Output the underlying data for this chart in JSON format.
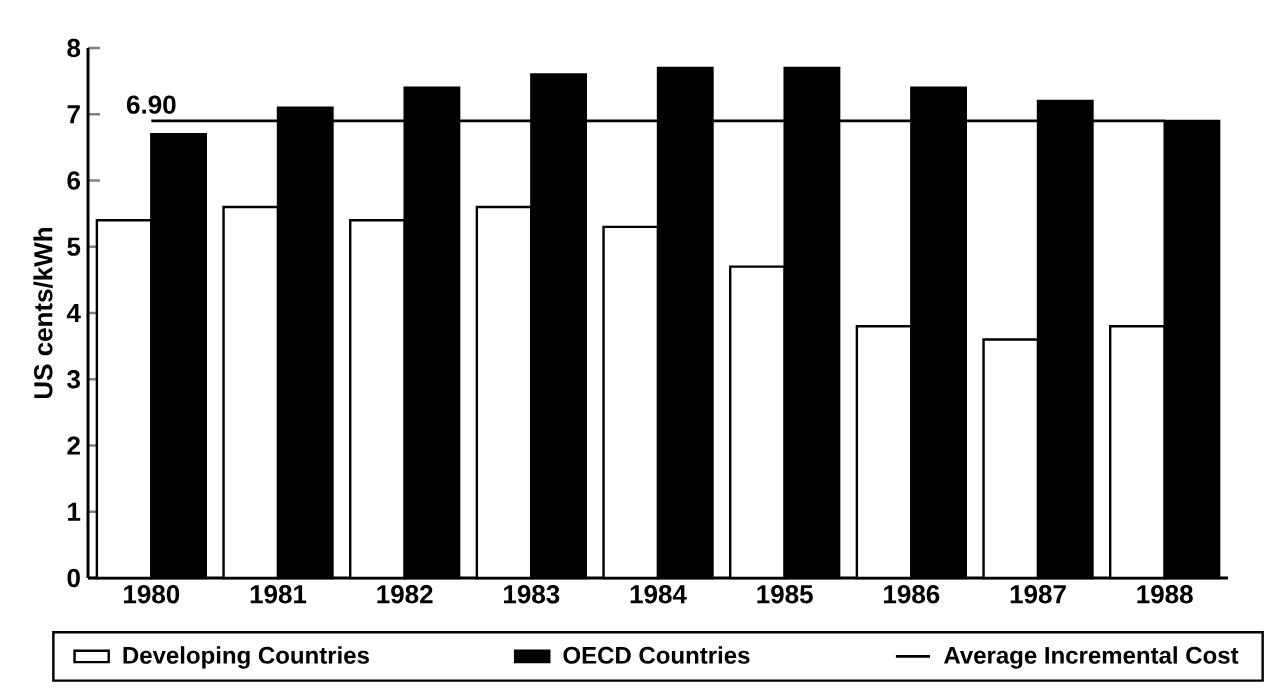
{
  "chart_data": {
    "type": "bar",
    "ylabel": "US cents/kWh",
    "categories": [
      "1980",
      "1981",
      "1982",
      "1983",
      "1984",
      "1985",
      "1986",
      "1987",
      "1988"
    ],
    "series": [
      {
        "name": "Developing Countries",
        "color": "#ffffff",
        "values": [
          5.4,
          5.6,
          5.4,
          5.6,
          5.3,
          4.7,
          3.8,
          3.6,
          3.8
        ]
      },
      {
        "name": "OECD Countries",
        "color": "#000000",
        "values": [
          6.7,
          7.1,
          7.4,
          7.6,
          7.7,
          7.7,
          7.4,
          7.2,
          6.9
        ]
      },
      {
        "name": "Average Incremental Cost",
        "type": "line",
        "color": "#000000",
        "values": [
          6.9,
          6.9,
          6.9,
          6.9,
          6.9,
          6.9,
          6.9,
          6.9,
          6.9
        ]
      }
    ],
    "annotations": [
      {
        "text": "6.90",
        "x": "1980",
        "y": 6.9
      }
    ],
    "ylim": [
      0,
      8
    ],
    "yticks": [
      0,
      1,
      2,
      3,
      4,
      5,
      6,
      7,
      8
    ],
    "grid": false,
    "legend": "bottom",
    "marker": "none"
  }
}
